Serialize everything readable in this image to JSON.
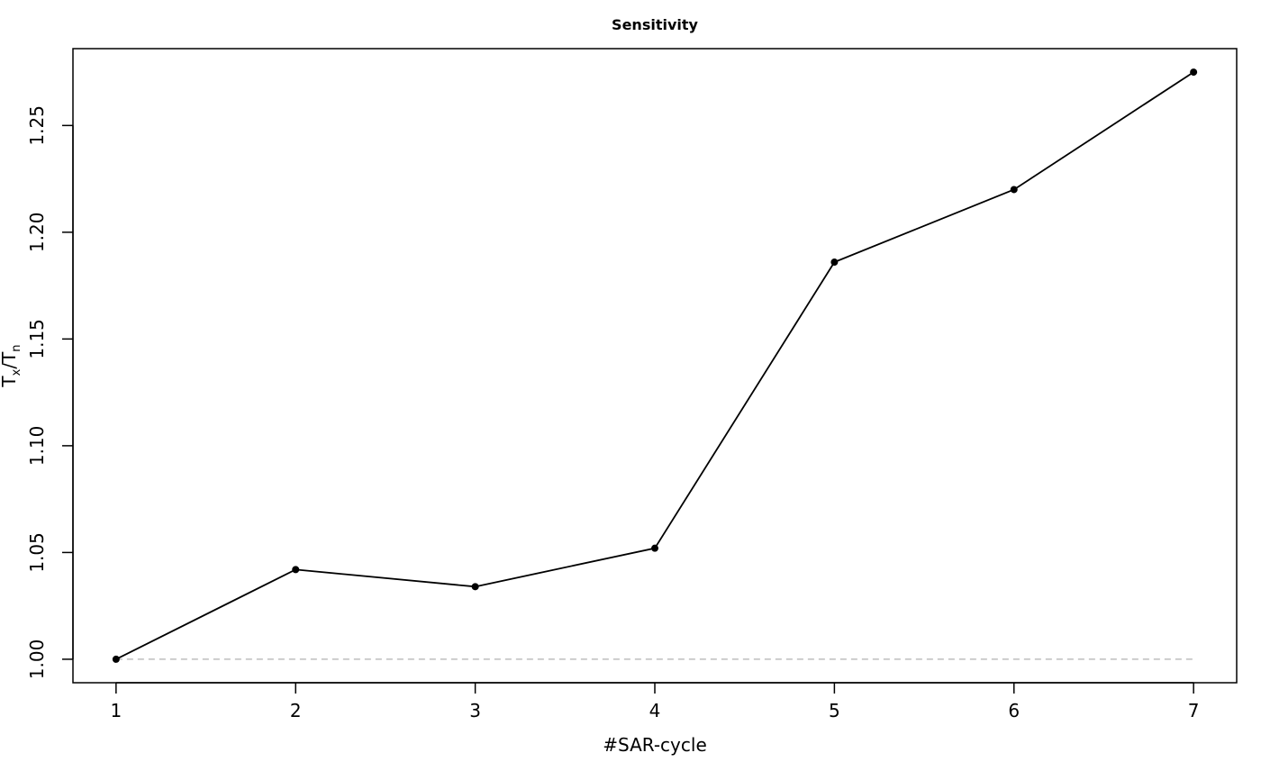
{
  "chart_data": {
    "type": "line",
    "title": "Sensitivity",
    "xlabel": "#SAR-cycle",
    "ylabel": {
      "main_1": "T",
      "sub_1": "x",
      "separator": "/",
      "main_2": "T",
      "sub_2": "n"
    },
    "x": [
      1,
      2,
      3,
      4,
      5,
      6,
      7
    ],
    "series": [
      {
        "values": [
          1.0,
          1.042,
          1.034,
          1.052,
          1.186,
          1.22,
          1.275
        ],
        "color": "#000000",
        "marker": "filled-circle"
      }
    ],
    "reference_line": {
      "y": 1.0,
      "style": "dashed",
      "color": "#bebebe"
    },
    "xlim": [
      0.76,
      7.24
    ],
    "ylim": [
      0.989,
      1.286
    ],
    "x_ticks": [
      1,
      2,
      3,
      4,
      5,
      6,
      7
    ],
    "x_tick_labels": [
      "1",
      "2",
      "3",
      "4",
      "5",
      "6",
      "7"
    ],
    "y_ticks": [
      1.0,
      1.05,
      1.1,
      1.15,
      1.2,
      1.25
    ],
    "y_tick_labels": [
      "1.00",
      "1.05",
      "1.10",
      "1.15",
      "1.20",
      "1.25"
    ],
    "grid": false,
    "legend": "none"
  }
}
